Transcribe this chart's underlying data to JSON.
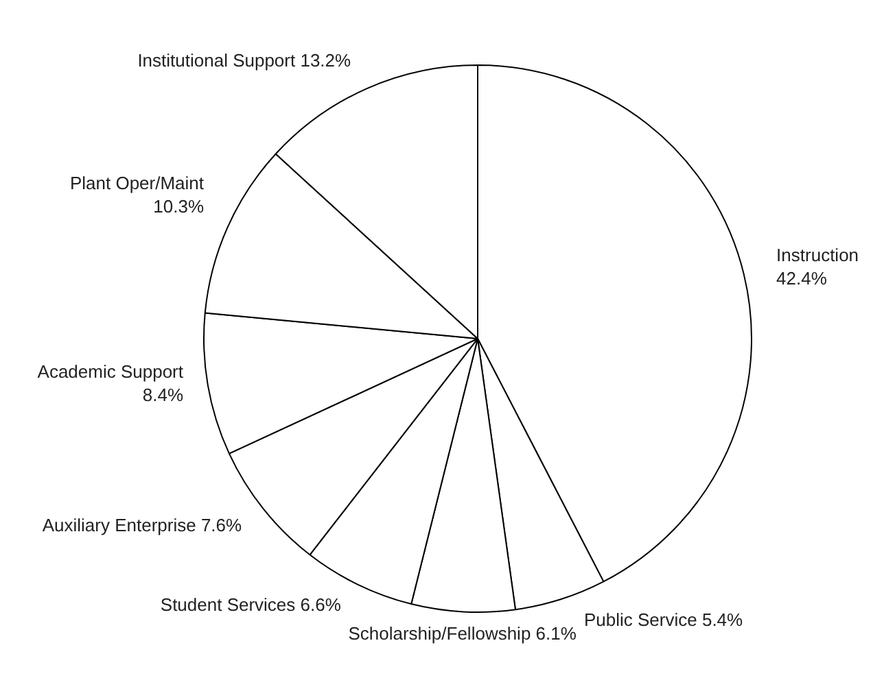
{
  "chart_data": {
    "type": "pie",
    "categories": [
      "Instruction",
      "Public Service",
      "Scholarship/Fellowship",
      "Student Services",
      "Auxiliary Enterprise",
      "Academic Support",
      "Plant Oper/Maint",
      "Institutional Support"
    ],
    "values": [
      42.4,
      5.4,
      6.1,
      6.6,
      7.6,
      8.4,
      10.3,
      13.2
    ],
    "value_labels": [
      "42.4%",
      "5.4%",
      "6.1%",
      "6.6%",
      "7.6%",
      "8.4%",
      "10.3%",
      "13.2%"
    ],
    "colors": [
      "#ffffff",
      "#ffffff",
      "#ffffff",
      "#ffffff",
      "#ffffff",
      "#ffffff",
      "#ffffff",
      "#ffffff"
    ],
    "legend": false
  }
}
